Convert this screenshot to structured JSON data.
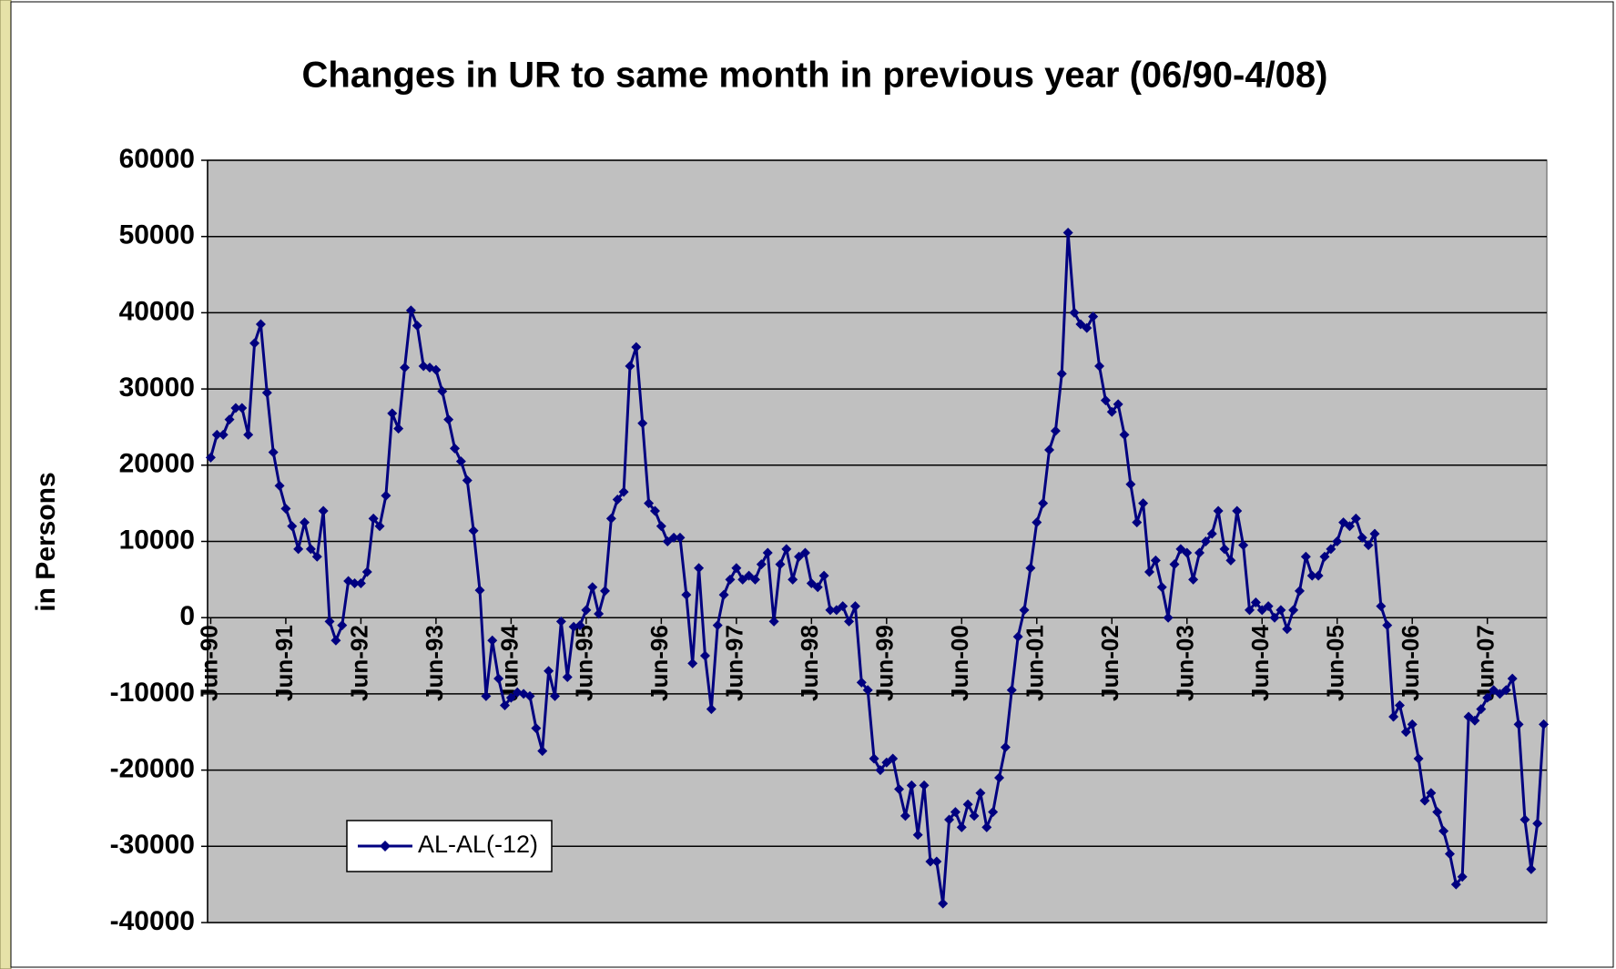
{
  "chart_data": {
    "type": "line",
    "title": "Changes in UR to same month in previous year (06/90-4/08)",
    "y_label": "in Persons",
    "categories": [
      "Jun-90",
      null,
      null,
      null,
      null,
      null,
      null,
      null,
      null,
      null,
      null,
      null,
      "Jun-91",
      null,
      null,
      null,
      null,
      null,
      null,
      null,
      null,
      null,
      null,
      null,
      "Jun-92",
      null,
      null,
      null,
      null,
      null,
      null,
      null,
      null,
      null,
      null,
      null,
      "Jun-93",
      null,
      null,
      null,
      null,
      null,
      null,
      null,
      null,
      null,
      null,
      null,
      "Jun-94",
      null,
      null,
      null,
      null,
      null,
      null,
      null,
      null,
      null,
      null,
      null,
      "Jun-95",
      null,
      null,
      null,
      null,
      null,
      null,
      null,
      null,
      null,
      null,
      null,
      "Jun-96",
      null,
      null,
      null,
      null,
      null,
      null,
      null,
      null,
      null,
      null,
      null,
      "Jun-97",
      null,
      null,
      null,
      null,
      null,
      null,
      null,
      null,
      null,
      null,
      null,
      "Jun-98",
      null,
      null,
      null,
      null,
      null,
      null,
      null,
      null,
      null,
      null,
      null,
      "Jun-99",
      null,
      null,
      null,
      null,
      null,
      null,
      null,
      null,
      null,
      null,
      null,
      "Jun-00",
      null,
      null,
      null,
      null,
      null,
      null,
      null,
      null,
      null,
      null,
      null,
      "Jun-01",
      null,
      null,
      null,
      null,
      null,
      null,
      null,
      null,
      null,
      null,
      null,
      "Jun-02",
      null,
      null,
      null,
      null,
      null,
      null,
      null,
      null,
      null,
      null,
      null,
      "Jun-03",
      null,
      null,
      null,
      null,
      null,
      null,
      null,
      null,
      null,
      null,
      null,
      "Jun-04",
      null,
      null,
      null,
      null,
      null,
      null,
      null,
      null,
      null,
      null,
      null,
      "Jun-05",
      null,
      null,
      null,
      null,
      null,
      null,
      null,
      null,
      null,
      null,
      null,
      "Jun-06",
      null,
      null,
      null,
      null,
      null,
      null,
      null,
      null,
      null,
      null,
      null,
      "Jun-07",
      null,
      null,
      null,
      null,
      null,
      null,
      null,
      null,
      null
    ],
    "series": [
      {
        "name": "AL-AL(-12)",
        "color": "#000080",
        "values": [
          21000,
          24000,
          24000,
          26000,
          27500,
          27500,
          24000,
          36000,
          38500,
          29500,
          21700,
          17300,
          14300,
          12000,
          9000,
          12500,
          9000,
          8000,
          14000,
          -500,
          -3000,
          -1000,
          4800,
          4500,
          4500,
          6000,
          13000,
          12000,
          16000,
          26800,
          24800,
          32800,
          40300,
          38300,
          33000,
          32800,
          32500,
          29700,
          26000,
          22200,
          20500,
          18000,
          11400,
          3600,
          -10300,
          -3000,
          -8000,
          -11500,
          -10500,
          -9800,
          -10000,
          -10300,
          -14500,
          -17500,
          -7000,
          -10300,
          -500,
          -7800,
          -1200,
          -1000,
          1000,
          4000,
          500,
          3500,
          13000,
          15500,
          16500,
          33000,
          35500,
          25500,
          15000,
          14000,
          12000,
          10000,
          10500,
          10500,
          3000,
          -6000,
          6500,
          -5000,
          -12000,
          -1000,
          3000,
          5000,
          6500,
          5000,
          5500,
          5000,
          7000,
          8500,
          -500,
          7000,
          9000,
          5000,
          8000,
          8500,
          4500,
          4000,
          5500,
          1000,
          1000,
          1500,
          -500,
          1500,
          -8500,
          -9500,
          -18500,
          -20000,
          -19000,
          -18500,
          -22500,
          -26000,
          -22000,
          -28500,
          -22000,
          -32000,
          -32000,
          -37500,
          -26500,
          -25500,
          -27500,
          -24500,
          -26000,
          -23000,
          -27500,
          -25500,
          -21000,
          -17000,
          -9500,
          -2500,
          1000,
          6500,
          12500,
          15000,
          22000,
          24500,
          32000,
          50500,
          40000,
          38500,
          38000,
          39500,
          33000,
          28500,
          27000,
          28000,
          24000,
          17500,
          12500,
          15000,
          6000,
          7500,
          4000,
          0,
          7000,
          9000,
          8500,
          5000,
          8500,
          10000,
          11000,
          14000,
          9000,
          7500,
          14000,
          9500,
          1000,
          2000,
          1000,
          1500,
          0,
          1000,
          -1500,
          1000,
          3500,
          8000,
          5500,
          5500,
          8000,
          9000,
          10000,
          12500,
          12000,
          13000,
          10500,
          9500,
          11000,
          1500,
          -1000,
          -13000,
          -11500,
          -15000,
          -14000,
          -18500,
          -24000,
          -23000,
          -25500,
          -28000,
          -31000,
          -35000,
          -34000,
          -13000,
          -13500,
          -12000,
          -10500,
          -9500,
          -10000,
          -9500,
          -8000,
          -14000,
          -26500,
          -33000,
          -27000,
          -14000
        ]
      }
    ],
    "ylim": [
      -40000,
      60000
    ],
    "yticks": [
      -40000,
      -30000,
      -20000,
      -10000,
      0,
      10000,
      20000,
      30000,
      40000,
      50000,
      60000
    ],
    "grid": true,
    "plot_background": "#c0c0c0",
    "legend": "lower left"
  }
}
